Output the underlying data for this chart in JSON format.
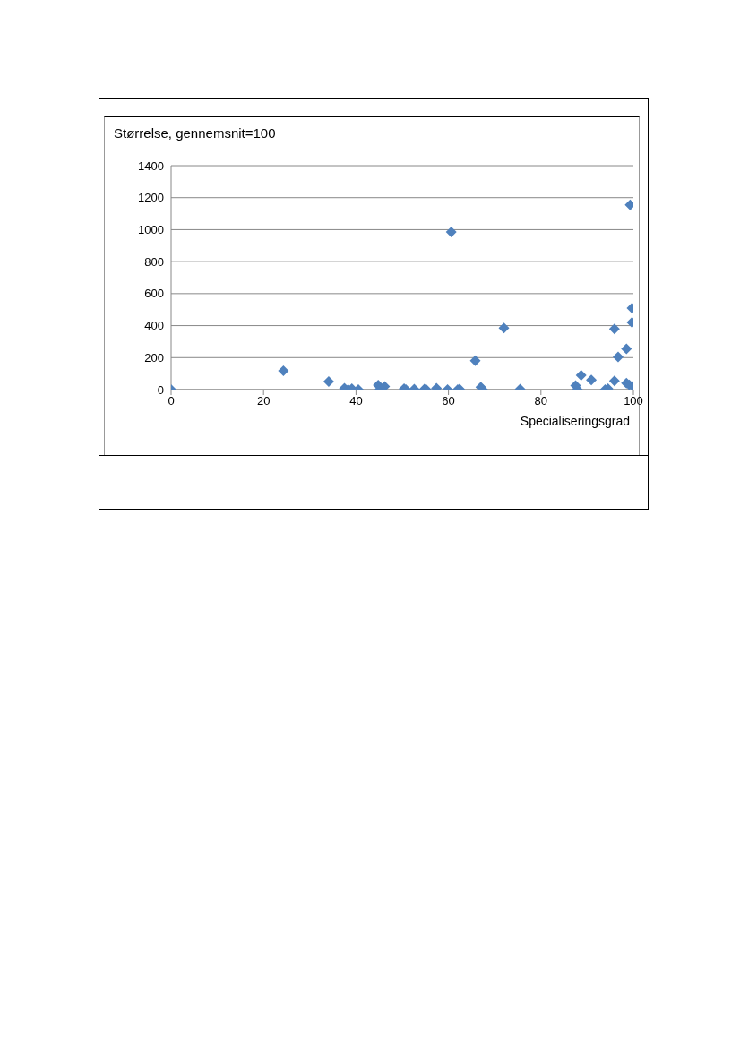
{
  "chart_data": {
    "type": "scatter",
    "xlabel": "Specialiseringsgrad",
    "ylabel": "Størrelse, gennemsnit=100",
    "x": [
      0,
      24.3,
      34.1,
      37.5,
      38.3,
      39.1,
      40.5,
      44.8,
      45.2,
      46.2,
      50.4,
      50.8,
      52.6,
      54.8,
      55.2,
      57.4,
      59.8,
      60.6,
      62,
      62.4,
      65.8,
      67,
      67.4,
      72,
      75.5,
      87.5,
      87.9,
      88.7,
      90.9,
      93.9,
      94.5,
      95.9,
      95.9,
      96.7,
      98.5,
      98.5,
      99.1,
      99.3,
      99.7,
      99.7,
      100
    ],
    "series": [
      {
        "color": "#4f81bd",
        "values": [
          0,
          118,
          50,
          8,
          0,
          5,
          0,
          28,
          3,
          20,
          5,
          0,
          3,
          3,
          0,
          8,
          0,
          985,
          0,
          3,
          180,
          15,
          0,
          385,
          3,
          25,
          0,
          90,
          60,
          0,
          5,
          55,
          380,
          205,
          255,
          40,
          30,
          1155,
          510,
          420,
          20
        ]
      }
    ],
    "xlim": [
      0,
      100
    ],
    "xticks": [
      0,
      20,
      40,
      60,
      80,
      100
    ],
    "ylim": [
      0,
      1400
    ],
    "yticks": [
      0,
      200,
      400,
      600,
      800,
      1000,
      1200,
      1400
    ],
    "grid": "y",
    "marker": "diamond",
    "legend": false
  }
}
